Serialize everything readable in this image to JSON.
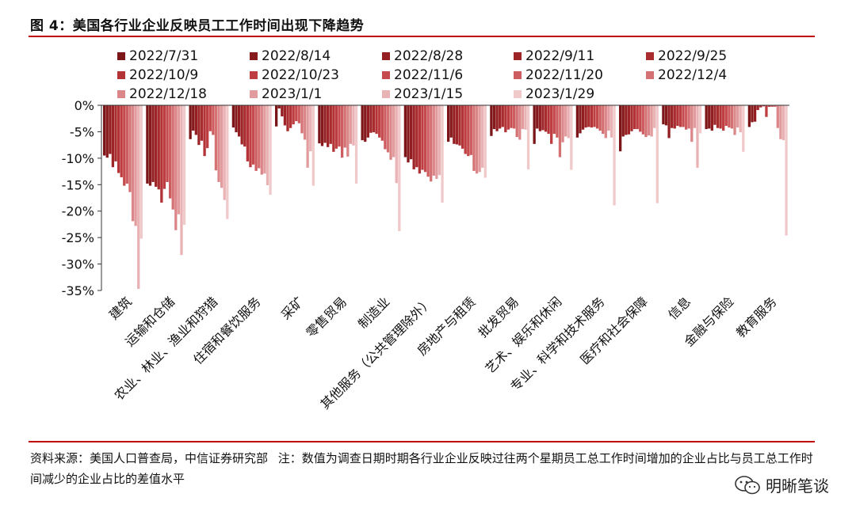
{
  "figure": {
    "title": "图 4：美国各行业企业反映员工工作时间出现下降趋势",
    "source_label": "资料来源：美国人口普查局，中信证券研究部",
    "note": "注：数值为调查日期时期各行业企业反映过往两个星期员工总工作时间增加的企业占比与员工总工作时间减少的企业占比的差值水平",
    "watermark": "明晰笔谈",
    "watermark_icon": "wechat-icon"
  },
  "chart_data": {
    "type": "bar",
    "title": "",
    "xlabel": "",
    "ylabel": "",
    "ylim": [
      -35,
      0
    ],
    "yticks": [
      0,
      -5,
      -10,
      -15,
      -20,
      -25,
      -30,
      -35
    ],
    "ytick_labels": [
      "0%",
      "-5%",
      "-10%",
      "-15%",
      "-20%",
      "-25%",
      "-30%",
      "-35%"
    ],
    "grid": false,
    "legend_position": "top",
    "categories": [
      "建筑",
      "运输和仓储",
      "农业、林业、渔业和狩猎",
      "住宿和餐饮服务",
      "采矿",
      "零售贸易",
      "制造业",
      "其他服务（公共管理除外）",
      "房地产与租赁",
      "批发贸易",
      "艺术、娱乐和休闲",
      "专业、科学和技术服务",
      "医疗和社会保障",
      "信息",
      "金融与保险",
      "教育服务"
    ],
    "colors": [
      "#7b1518",
      "#86191c",
      "#921e21",
      "#9d2427",
      "#a82b2e",
      "#b33336",
      "#bd3d40",
      "#c54a4d",
      "#cd5d60",
      "#d47173",
      "#db8689",
      "#e29c9e",
      "#e9b3b5",
      "#f0c9ca"
    ],
    "series": [
      {
        "name": "2022/7/31",
        "values": [
          -9.5,
          -14.8,
          -6.4,
          -4.2,
          -4.0,
          -7.2,
          -6.6,
          -9.8,
          -6.9,
          -5.8,
          -7.3,
          -6.1,
          -8.7,
          -3.6,
          -4.5,
          -4.1
        ]
      },
      {
        "name": "2022/8/14",
        "values": [
          -9.9,
          -15.2,
          -4.8,
          -5.1,
          -0.6,
          -7.7,
          -6.9,
          -10.8,
          -6.1,
          -4.5,
          -4.4,
          -5.3,
          -5.9,
          -3.8,
          -4.4,
          -3.2
        ]
      },
      {
        "name": "2022/8/28",
        "values": [
          -9.2,
          -14.5,
          -5.6,
          -5.9,
          -2.1,
          -7.1,
          -6.1,
          -10.2,
          -7.3,
          -4.9,
          -4.9,
          -4.6,
          -5.6,
          -6.2,
          -4.8,
          -3.1
        ]
      },
      {
        "name": "2022/9/11",
        "values": [
          -11.7,
          -15.4,
          -7.5,
          -7.4,
          -3.8,
          -7.9,
          -5.2,
          -12.1,
          -7.4,
          -4.4,
          -4.7,
          -4.2,
          -5.5,
          -4.3,
          -3.7,
          -0.9
        ]
      },
      {
        "name": "2022/9/25",
        "values": [
          -10.6,
          -15.9,
          -6.7,
          -7.8,
          -4.9,
          -7.3,
          -5.1,
          -11.7,
          -7.6,
          -4.1,
          -5.0,
          -4.1,
          -4.9,
          -4.4,
          -4.3,
          -0.4
        ]
      },
      {
        "name": "2022/10/9",
        "values": [
          -12.8,
          -18.4,
          -9.6,
          -10.6,
          -4.3,
          -8.8,
          -5.4,
          -12.9,
          -8.2,
          -5.1,
          -5.4,
          -4.2,
          -4.5,
          -3.9,
          -4.4,
          -0.2
        ]
      },
      {
        "name": "2022/10/23",
        "values": [
          -13.6,
          -15.8,
          -8.1,
          -11.7,
          -3.6,
          -8.2,
          -6.1,
          -12.2,
          -9.2,
          -4.6,
          -7.3,
          -4.1,
          -4.5,
          -4.1,
          -4.8,
          -2.2
        ]
      },
      {
        "name": "2022/11/6",
        "values": [
          -15.2,
          -14.5,
          -4.9,
          -11.2,
          -3.0,
          -7.8,
          -6.7,
          -12.6,
          -9.6,
          -4.3,
          -5.4,
          -4.4,
          -5.0,
          -4.1,
          -3.9,
          -0.3
        ]
      },
      {
        "name": "2022/11/20",
        "values": [
          -14.8,
          -17.6,
          -5.6,
          -12.4,
          -3.4,
          -9.9,
          -8.3,
          -13.5,
          -9.4,
          -4.4,
          -6.1,
          -4.8,
          -5.5,
          -4.6,
          -4.2,
          -0.3
        ]
      },
      {
        "name": "2022/12/4",
        "values": [
          -16.4,
          -19.7,
          -12.3,
          -11.9,
          -5.3,
          -8.0,
          -8.9,
          -14.4,
          -12.4,
          -6.0,
          -9.8,
          -5.4,
          -6.0,
          -4.4,
          -4.4,
          -0.3
        ]
      },
      {
        "name": "2022/12/18",
        "values": [
          -21.9,
          -23.6,
          -14.5,
          -13.1,
          -6.5,
          -9.7,
          -10.3,
          -13.3,
          -12.9,
          -6.5,
          -7.0,
          -6.2,
          -5.7,
          -6.9,
          -5.6,
          -4.3
        ]
      },
      {
        "name": "2023/1/1",
        "values": [
          -22.8,
          -20.6,
          -15.6,
          -12.9,
          -11.8,
          -7.3,
          -9.8,
          -13.9,
          -12.6,
          -4.5,
          -5.9,
          -4.8,
          -5.9,
          -4.3,
          -4.2,
          -6.4
        ]
      },
      {
        "name": "2023/1/15",
        "values": [
          -34.7,
          -28.3,
          -17.9,
          -15.1,
          -8.7,
          -7.6,
          -14.7,
          -13.2,
          -11.8,
          -4.6,
          -6.2,
          -6.1,
          -4.3,
          -11.8,
          -5.1,
          -6.6
        ]
      },
      {
        "name": "2023/1/29",
        "values": [
          -25.2,
          -22.6,
          -21.5,
          -16.9,
          -15.2,
          -14.8,
          -23.8,
          -18.4,
          -13.7,
          -12.1,
          -12.2,
          -18.9,
          -18.5,
          -5.3,
          -8.8,
          -24.6
        ]
      }
    ]
  }
}
